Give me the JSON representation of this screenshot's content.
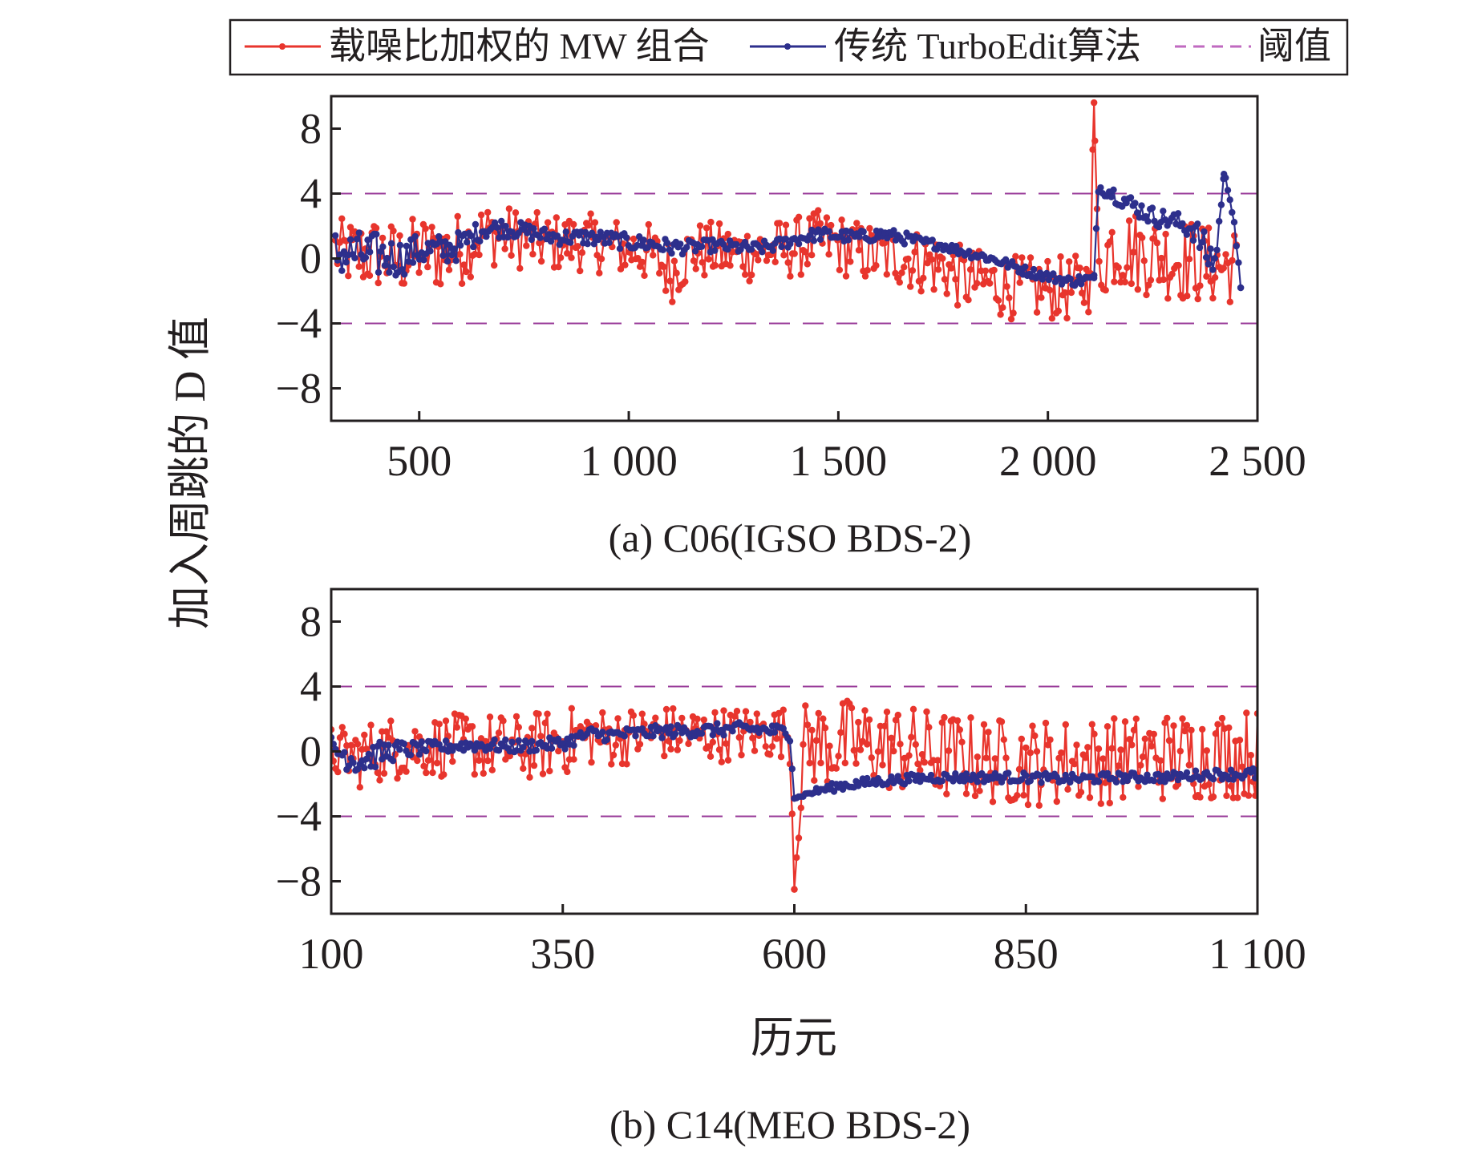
{
  "chart_data": {
    "legend": {
      "placement": "top-center",
      "entries": [
        {
          "label": "载噪比加权的 MW 组合",
          "color": "#e8352d",
          "style": "line-marker"
        },
        {
          "label": "传统 TurboEdit算法",
          "color": "#2d2f8c",
          "style": "line-marker"
        },
        {
          "label": "阈值",
          "color": "#c06ac0",
          "style": "dashed"
        }
      ]
    },
    "ylabel": "加入周跳的 D 值",
    "xlabel": "历元",
    "colors": {
      "mw": "#e8352d",
      "turbo": "#2d2f8c",
      "threshold": "#9a3c9a",
      "axis": "#231f20"
    },
    "panels": [
      {
        "id": "a",
        "type": "line",
        "caption": "(a) C06(IGSO BDS-2)",
        "xlim": [
          290,
          2500
        ],
        "ylim": [
          -10,
          10
        ],
        "xticks": [
          500,
          1000,
          1500,
          2000,
          2500
        ],
        "xtick_labels": [
          "500",
          "1 000",
          "1 500",
          "2 000",
          "2 500"
        ],
        "yticks": [
          8,
          4,
          0,
          -4,
          -8
        ],
        "ytick_labels": [
          "8",
          "4",
          "0",
          "−4",
          "−8"
        ],
        "thresholds": [
          4,
          -4
        ],
        "series": [
          {
            "name": "载噪比加权的 MW 组合",
            "x": [
              300,
              350,
              400,
              450,
              500,
              550,
              600,
              650,
              700,
              750,
              800,
              850,
              900,
              950,
              1000,
              1050,
              1100,
              1150,
              1200,
              1250,
              1300,
              1350,
              1400,
              1450,
              1500,
              1550,
              1600,
              1650,
              1700,
              1750,
              1800,
              1850,
              1900,
              1950,
              2000,
              2050,
              2100,
              2110,
              2120,
              2150,
              2200,
              2250,
              2300,
              2350,
              2400,
              2450
            ],
            "y": [
              0.5,
              0.2,
              0.3,
              -0.1,
              0.4,
              0.3,
              0.6,
              1.5,
              1.4,
              1.2,
              0.9,
              1.0,
              1.0,
              0.8,
              0.6,
              0.3,
              -0.8,
              0.4,
              0.5,
              0.3,
              0.4,
              0.5,
              0.7,
              1.1,
              0.9,
              0.4,
              0.2,
              0.1,
              -0.2,
              -0.5,
              -1.3,
              -1.5,
              -1.7,
              -1.9,
              -1.8,
              -1.9,
              -1.5,
              9.6,
              -1.0,
              0.8,
              0.5,
              0.2,
              0.0,
              -0.2,
              -0.5,
              -0.4
            ],
            "spread": [
              2.0,
              2.2,
              2.3,
              2.3,
              2.3,
              2.3,
              2.3,
              2.0,
              1.9,
              1.9,
              1.8,
              1.8,
              1.8,
              1.8,
              1.8,
              1.9,
              2.0,
              1.9,
              1.8,
              1.8,
              1.9,
              1.9,
              1.9,
              1.9,
              1.9,
              1.9,
              1.9,
              1.9,
              2.0,
              2.0,
              2.0,
              2.0,
              2.0,
              2.0,
              2.0,
              2.0,
              2.0,
              0.0,
              2.2,
              2.6,
              2.6,
              2.6,
              2.6,
              2.6,
              2.4,
              2.4
            ]
          },
          {
            "name": "传统 TurboEdit算法",
            "x": [
              300,
              350,
              400,
              450,
              500,
              550,
              600,
              650,
              700,
              750,
              800,
              850,
              900,
              950,
              1000,
              1050,
              1100,
              1150,
              1200,
              1250,
              1300,
              1350,
              1400,
              1450,
              1500,
              1550,
              1600,
              1650,
              1700,
              1750,
              1800,
              1850,
              1900,
              1950,
              2000,
              2050,
              2100,
              2110,
              2120,
              2150,
              2200,
              2250,
              2300,
              2350,
              2380,
              2400,
              2420,
              2440,
              2460
            ],
            "y": [
              0.3,
              0.3,
              0.2,
              0.0,
              0.5,
              0.5,
              0.8,
              1.8,
              1.9,
              1.7,
              1.4,
              1.3,
              1.3,
              1.2,
              1.0,
              0.9,
              0.7,
              0.7,
              0.8,
              0.7,
              0.6,
              0.8,
              1.2,
              1.5,
              1.4,
              1.3,
              1.5,
              1.3,
              1.0,
              0.8,
              0.4,
              0.1,
              -0.3,
              -0.8,
              -1.1,
              -1.4,
              -1.3,
              -1.2,
              4.4,
              4.1,
              3.3,
              2.6,
              2.3,
              1.8,
              0.2,
              -0.2,
              5.2,
              3.5,
              -1.8
            ],
            "spread": [
              1.5,
              1.4,
              1.4,
              1.2,
              1.0,
              1.0,
              0.9,
              0.6,
              0.6,
              0.5,
              0.5,
              0.5,
              0.5,
              0.5,
              0.5,
              0.5,
              0.5,
              0.4,
              0.4,
              0.4,
              0.4,
              0.4,
              0.4,
              0.4,
              0.4,
              0.4,
              0.4,
              0.4,
              0.3,
              0.3,
              0.3,
              0.3,
              0.3,
              0.3,
              0.3,
              0.3,
              0.4,
              0.0,
              0.3,
              0.5,
              0.6,
              0.6,
              0.6,
              0.8,
              1.2,
              1.0,
              0.0,
              0.8,
              0.0
            ]
          }
        ]
      },
      {
        "id": "b",
        "type": "line",
        "caption": "(b) C14(MEO BDS-2)",
        "xlim": [
          100,
          1100
        ],
        "ylim": [
          -10,
          10
        ],
        "xticks": [
          100,
          350,
          600,
          850,
          1100
        ],
        "xtick_labels": [
          "100",
          "350",
          "600",
          "850",
          "1 100"
        ],
        "yticks": [
          8,
          4,
          0,
          -4,
          -8
        ],
        "ytick_labels": [
          "8",
          "4",
          "0",
          "−4",
          "−8"
        ],
        "thresholds": [
          4,
          -4
        ],
        "series": [
          {
            "name": "载噪比加权的 MW 组合",
            "x": [
              100,
              130,
              160,
              200,
              250,
              300,
              350,
              380,
              400,
              450,
              500,
              550,
              595,
              600,
              610,
              650,
              700,
              750,
              800,
              850,
              900,
              950,
              1000,
              1050,
              1100
            ],
            "y": [
              0.0,
              -0.3,
              0.2,
              0.3,
              0.4,
              0.2,
              0.6,
              1.0,
              0.8,
              1.2,
              1.0,
              1.1,
              1.2,
              -8.5,
              0.4,
              0.5,
              0.3,
              -0.2,
              -0.5,
              -0.7,
              -0.6,
              -0.5,
              -0.3,
              -0.2,
              -0.1
            ],
            "spread": [
              1.6,
              2.0,
              2.0,
              1.9,
              2.0,
              2.1,
              2.1,
              1.9,
              1.8,
              1.7,
              1.7,
              1.7,
              1.6,
              0.0,
              2.6,
              2.8,
              2.8,
              2.8,
              2.7,
              2.7,
              2.7,
              2.7,
              2.8,
              2.8,
              2.8
            ]
          },
          {
            "name": "传统 TurboEdit算法",
            "x": [
              100,
              130,
              160,
              200,
              250,
              300,
              350,
              380,
              400,
              450,
              500,
              550,
              595,
              600,
              620,
              650,
              700,
              750,
              800,
              850,
              900,
              950,
              1000,
              1050,
              1100
            ],
            "y": [
              0.2,
              -0.6,
              0.0,
              0.2,
              0.4,
              0.3,
              0.5,
              1.1,
              1.0,
              1.2,
              1.3,
              1.4,
              1.2,
              -2.9,
              -2.5,
              -2.1,
              -1.8,
              -1.6,
              -1.6,
              -1.6,
              -1.7,
              -1.6,
              -1.6,
              -1.4,
              -1.4
            ],
            "spread": [
              0.9,
              0.9,
              0.7,
              0.4,
              0.4,
              0.4,
              0.4,
              0.4,
              0.4,
              0.4,
              0.4,
              0.4,
              0.4,
              0.0,
              0.2,
              0.3,
              0.3,
              0.3,
              0.3,
              0.3,
              0.3,
              0.3,
              0.3,
              0.3,
              0.4
            ]
          }
        ]
      }
    ]
  }
}
